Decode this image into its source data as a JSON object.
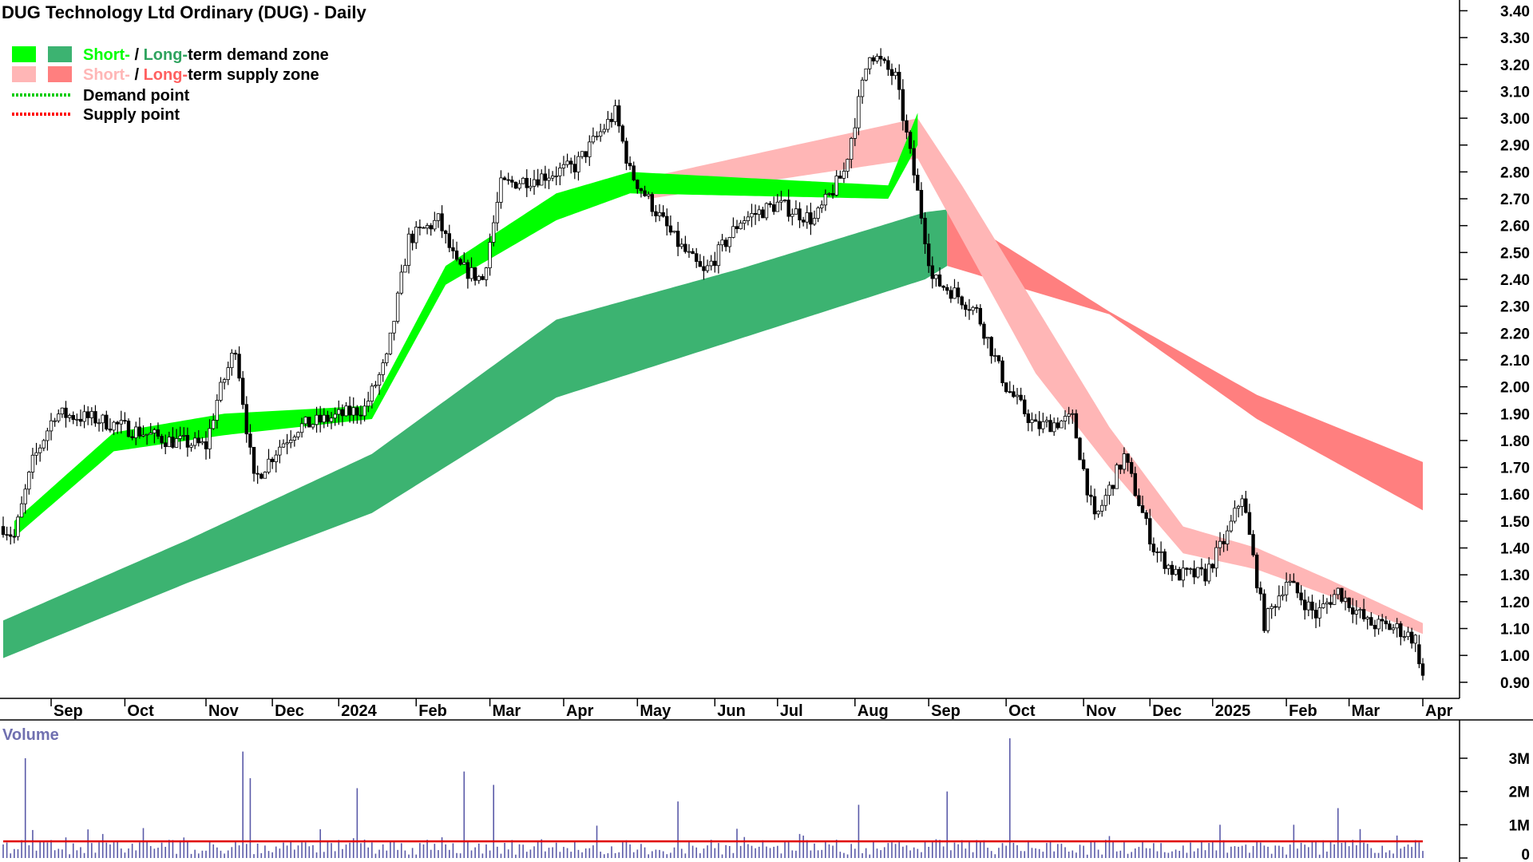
{
  "chart_data": {
    "type": "candlestick",
    "title": "DUG Technology Ltd Ordinary (DUG) - Daily",
    "legend": {
      "placement": "top-left",
      "items": [
        {
          "parts": [
            "Short-",
            " / ",
            "Long-",
            "term demand zone"
          ],
          "colors": [
            "#00ff00",
            "#3cb371"
          ]
        },
        {
          "parts": [
            "Short-",
            " / ",
            "Long-",
            "term supply zone"
          ],
          "colors": [
            "#ffb6b6",
            "#ff7f7f"
          ]
        },
        {
          "label": "Demand point",
          "color": "#00cc00"
        },
        {
          "label": "Supply point",
          "color": "#ff0000"
        }
      ]
    },
    "x_labels": [
      "Sep",
      "Oct",
      "Nov",
      "Dec",
      "2024",
      "Feb",
      "Mar",
      "Apr",
      "May",
      "Jun",
      "Jul",
      "Aug",
      "Sep",
      "Oct",
      "Nov",
      "Dec",
      "2025",
      "Feb",
      "Mar",
      "Apr"
    ],
    "y_ticks": [
      "0.90",
      "1.00",
      "1.10",
      "1.20",
      "1.30",
      "1.40",
      "1.50",
      "1.60",
      "1.70",
      "1.80",
      "1.90",
      "2.00",
      "2.10",
      "2.20",
      "2.30",
      "2.40",
      "2.50",
      "2.60",
      "2.70",
      "2.80",
      "2.90",
      "3.00",
      "3.10",
      "3.20",
      "3.30",
      "3.40"
    ],
    "ylim": [
      0.84,
      3.44
    ],
    "price_anchors": [
      {
        "t": 0,
        "v": 1.48
      },
      {
        "t": 3,
        "v": 1.44
      },
      {
        "t": 8,
        "v": 1.72
      },
      {
        "t": 14,
        "v": 1.9
      },
      {
        "t": 25,
        "v": 1.88
      },
      {
        "t": 35,
        "v": 1.84
      },
      {
        "t": 45,
        "v": 1.8
      },
      {
        "t": 55,
        "v": 1.78
      },
      {
        "t": 58,
        "v": 1.95
      },
      {
        "t": 63,
        "v": 2.15
      },
      {
        "t": 68,
        "v": 1.65
      },
      {
        "t": 75,
        "v": 1.78
      },
      {
        "t": 80,
        "v": 1.85
      },
      {
        "t": 88,
        "v": 1.88
      },
      {
        "t": 98,
        "v": 1.92
      },
      {
        "t": 104,
        "v": 2.1
      },
      {
        "t": 110,
        "v": 2.55
      },
      {
        "t": 118,
        "v": 2.62
      },
      {
        "t": 123,
        "v": 2.45
      },
      {
        "t": 130,
        "v": 2.4
      },
      {
        "t": 135,
        "v": 2.75
      },
      {
        "t": 145,
        "v": 2.78
      },
      {
        "t": 155,
        "v": 2.82
      },
      {
        "t": 166,
        "v": 3.02
      },
      {
        "t": 170,
        "v": 2.8
      },
      {
        "t": 182,
        "v": 2.55
      },
      {
        "t": 190,
        "v": 2.42
      },
      {
        "t": 200,
        "v": 2.62
      },
      {
        "t": 210,
        "v": 2.68
      },
      {
        "t": 220,
        "v": 2.62
      },
      {
        "t": 228,
        "v": 2.8
      },
      {
        "t": 235,
        "v": 3.25
      },
      {
        "t": 242,
        "v": 3.15
      },
      {
        "t": 248,
        "v": 2.72
      },
      {
        "t": 252,
        "v": 2.4
      },
      {
        "t": 258,
        "v": 2.35
      },
      {
        "t": 264,
        "v": 2.28
      },
      {
        "t": 272,
        "v": 2.0
      },
      {
        "t": 280,
        "v": 1.85
      },
      {
        "t": 290,
        "v": 1.88
      },
      {
        "t": 296,
        "v": 1.5
      },
      {
        "t": 304,
        "v": 1.74
      },
      {
        "t": 312,
        "v": 1.4
      },
      {
        "t": 318,
        "v": 1.3
      },
      {
        "t": 326,
        "v": 1.3
      },
      {
        "t": 332,
        "v": 1.45
      },
      {
        "t": 336,
        "v": 1.6
      },
      {
        "t": 342,
        "v": 1.12
      },
      {
        "t": 348,
        "v": 1.28
      },
      {
        "t": 356,
        "v": 1.15
      },
      {
        "t": 362,
        "v": 1.24
      },
      {
        "t": 370,
        "v": 1.12
      },
      {
        "t": 378,
        "v": 1.1
      },
      {
        "t": 383,
        "v": 1.06
      },
      {
        "t": 385,
        "v": 0.92
      }
    ],
    "zones": {
      "long_term_demand": {
        "color": "#3cb371",
        "x": [
          0,
          50,
          100,
          150,
          200,
          250,
          256
        ],
        "top": [
          1.13,
          1.43,
          1.75,
          2.25,
          2.44,
          2.65,
          2.66
        ],
        "bottom": [
          0.99,
          1.27,
          1.53,
          1.96,
          2.18,
          2.4,
          2.45
        ]
      },
      "short_term_demand": {
        "color": "#00ff00",
        "x": [
          3,
          30,
          60,
          100,
          120,
          150,
          170,
          240,
          248
        ],
        "top": [
          1.5,
          1.83,
          1.9,
          1.93,
          2.45,
          2.72,
          2.8,
          2.75,
          3.02
        ],
        "bottom": [
          1.44,
          1.76,
          1.82,
          1.88,
          2.38,
          2.62,
          2.72,
          2.7,
          2.9
        ]
      },
      "short_term_supply": {
        "color": "#ffb6b6",
        "x": [
          175,
          248,
          260,
          280,
          300,
          320,
          340,
          360,
          385
        ],
        "top": [
          2.78,
          3.0,
          2.75,
          2.3,
          1.85,
          1.48,
          1.4,
          1.28,
          1.12
        ],
        "bottom": [
          2.7,
          2.85,
          2.55,
          2.05,
          1.7,
          1.38,
          1.32,
          1.22,
          1.08
        ]
      },
      "long_term_supply": {
        "color": "#ff7f7f",
        "x": [
          256,
          300,
          340,
          385
        ],
        "top": [
          2.66,
          2.28,
          1.97,
          1.72
        ],
        "bottom": [
          2.45,
          2.27,
          1.88,
          1.54
        ]
      }
    },
    "volume": {
      "label": "Volume",
      "y_ticks": [
        "0",
        "1M",
        "2M",
        "3M"
      ],
      "ylim": [
        0,
        3.6
      ],
      "average_line_color": "#e00000",
      "bar_color": "#5a5aa8",
      "average": 0.5,
      "spikes": [
        {
          "t": 6,
          "v": 3.0
        },
        {
          "t": 38,
          "v": 0.9
        },
        {
          "t": 65,
          "v": 3.2
        },
        {
          "t": 67,
          "v": 2.4
        },
        {
          "t": 96,
          "v": 2.1
        },
        {
          "t": 125,
          "v": 2.6
        },
        {
          "t": 133,
          "v": 2.2
        },
        {
          "t": 183,
          "v": 1.7
        },
        {
          "t": 232,
          "v": 1.6
        },
        {
          "t": 256,
          "v": 2.0
        },
        {
          "t": 273,
          "v": 3.6
        },
        {
          "t": 330,
          "v": 1.0
        },
        {
          "t": 350,
          "v": 1.0
        },
        {
          "t": 362,
          "v": 1.5
        }
      ]
    }
  }
}
